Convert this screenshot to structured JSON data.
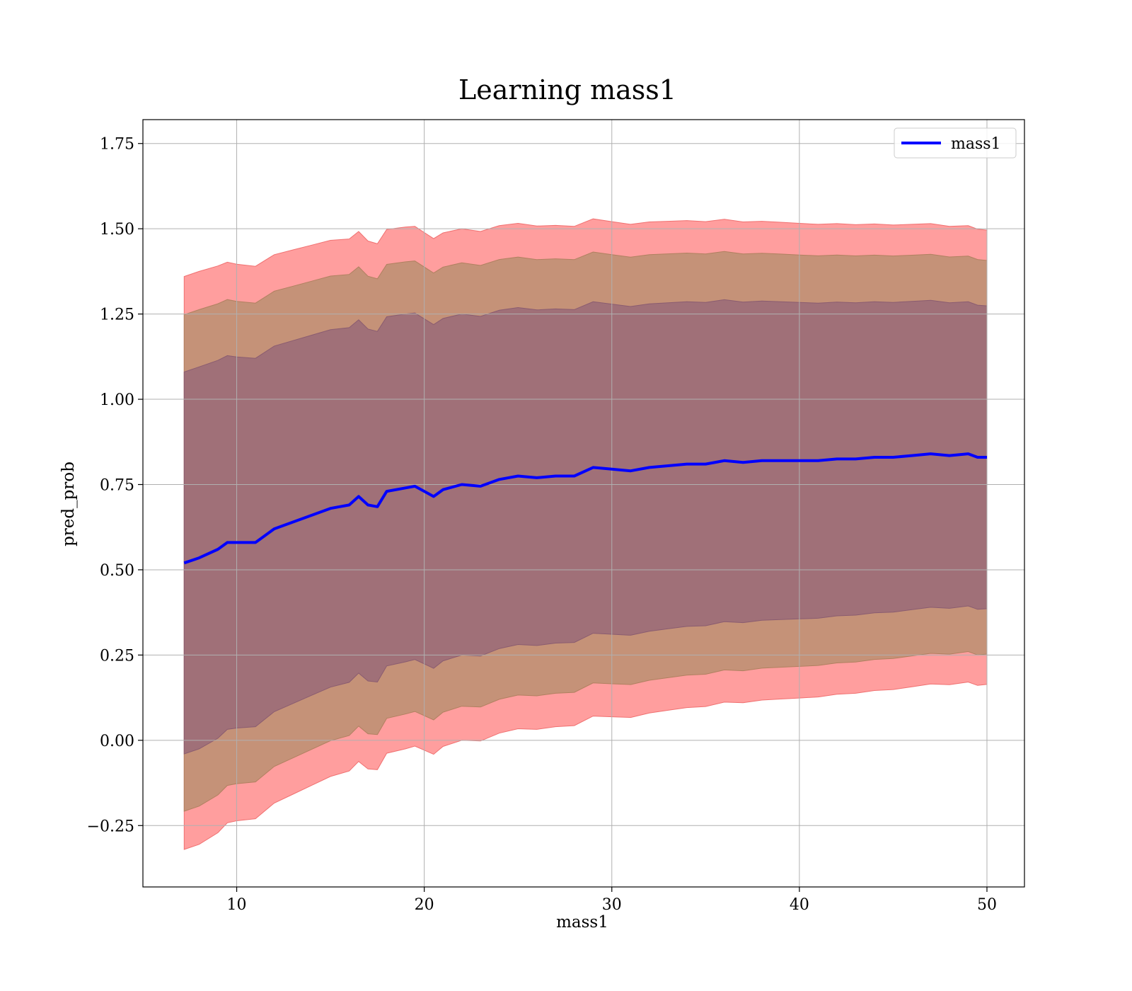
{
  "chart_data": {
    "type": "line",
    "title": "Learning mass1",
    "xlabel": "mass1",
    "ylabel": "pred_prob",
    "xlim": [
      5,
      52
    ],
    "ylim": [
      -0.43,
      1.82
    ],
    "x_ticks": [
      10,
      20,
      30,
      40,
      50
    ],
    "x_tick_labels": [
      "10",
      "20",
      "30",
      "40",
      "50"
    ],
    "y_ticks": [
      -0.25,
      0.0,
      0.25,
      0.5,
      0.75,
      1.0,
      1.25,
      1.5,
      1.75
    ],
    "y_tick_labels": [
      "−0.25",
      "0.00",
      "0.25",
      "0.50",
      "0.75",
      "1.00",
      "1.25",
      "1.50",
      "1.75"
    ],
    "grid": true,
    "legend_position": "top-right",
    "colors": {
      "line": "#0000ff",
      "band_outer": "#ff9e9e",
      "band_middle": "#c59278",
      "band_inner": "#a07078",
      "grid": "#b0b0b0"
    },
    "series": [
      {
        "name": "mass1",
        "x": [
          7.2,
          8,
          9,
          9.5,
          10,
          11,
          12,
          13,
          14,
          15,
          16,
          16.5,
          17,
          17.5,
          18,
          19,
          19.5,
          20,
          20.5,
          21,
          22,
          23,
          24,
          25,
          26,
          27,
          28,
          29,
          30,
          31,
          32,
          33,
          34,
          35,
          36,
          37,
          38,
          39,
          40,
          41,
          42,
          43,
          44,
          45,
          46,
          47,
          48,
          49,
          49.5,
          50
        ],
        "values": [
          0.52,
          0.535,
          0.56,
          0.58,
          0.58,
          0.58,
          0.62,
          0.64,
          0.66,
          0.68,
          0.69,
          0.715,
          0.69,
          0.685,
          0.73,
          0.74,
          0.745,
          0.73,
          0.715,
          0.735,
          0.75,
          0.745,
          0.765,
          0.775,
          0.77,
          0.775,
          0.775,
          0.8,
          0.795,
          0.79,
          0.8,
          0.805,
          0.81,
          0.81,
          0.82,
          0.815,
          0.82,
          0.82,
          0.82,
          0.82,
          0.825,
          0.825,
          0.83,
          0.83,
          0.835,
          0.84,
          0.835,
          0.84,
          0.83,
          0.83
        ]
      }
    ],
    "bands": {
      "outer_sigma": 3,
      "middle_sigma": 2.6,
      "inner_sigma": 2,
      "sigma": [
        0.28,
        0.28,
        0.277,
        0.274,
        0.272,
        0.27,
        0.268,
        0.266,
        0.264,
        0.262,
        0.26,
        0.259,
        0.258,
        0.257,
        0.256,
        0.255,
        0.254,
        0.253,
        0.252,
        0.251,
        0.25,
        0.249,
        0.248,
        0.247,
        0.246,
        0.245,
        0.244,
        0.243,
        0.242,
        0.241,
        0.24,
        0.239,
        0.238,
        0.237,
        0.236,
        0.235,
        0.234,
        0.233,
        0.232,
        0.231,
        0.23,
        0.229,
        0.228,
        0.227,
        0.226,
        0.225,
        0.224,
        0.223,
        0.223,
        0.222
      ]
    }
  }
}
